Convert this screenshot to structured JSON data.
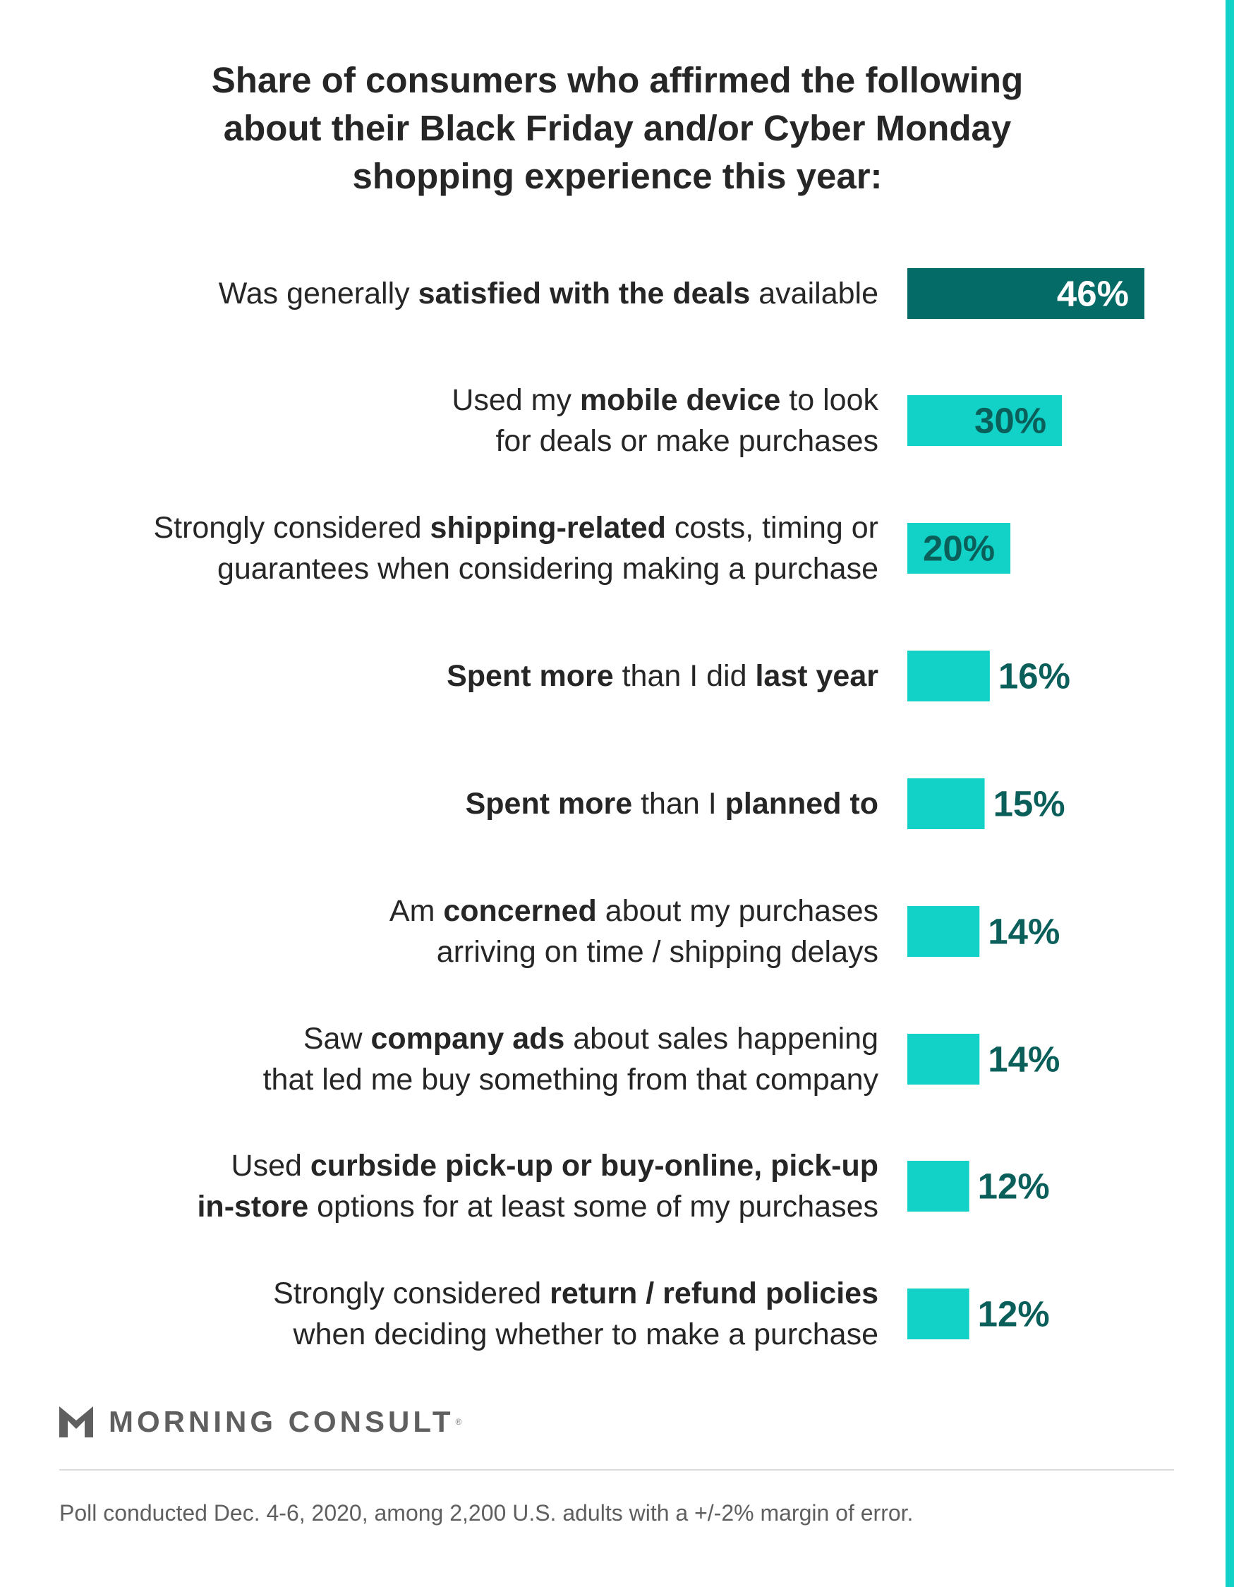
{
  "title_lines": [
    "Share of consumers who affirmed the following",
    "about their Black Friday and/or Cyber Monday",
    "shopping experience this year:"
  ],
  "colors": {
    "highlight_bar": "#056b66",
    "bar": "#12d1c6",
    "value_inside_highlight": "#ffffff",
    "value_text": "#0b5f5a",
    "accent_rule": "#12d1c6"
  },
  "chart_data": {
    "type": "bar",
    "orientation": "horizontal",
    "xlim": [
      0,
      46
    ],
    "grid": false,
    "legend": "none",
    "categories": [
      "Was generally satisfied with the deals available",
      "Used my mobile device to look for deals or make purchases",
      "Strongly considered shipping-related costs, timing or guarantees when considering making a purchase",
      "Spent more than I did last year",
      "Spent more than I planned to",
      "Am concerned about my purchases arriving on time / shipping delays",
      "Saw company ads about sales happening that led me buy something from that company",
      "Used curbside pick-up or buy-online, pick-up in-store options for at least some of my purchases",
      "Strongly considered return / refund policies when deciding whether to make a purchase"
    ],
    "values": [
      46,
      30,
      20,
      16,
      15,
      14,
      14,
      12,
      12
    ],
    "value_labels": [
      "46%",
      "30%",
      "20%",
      "16%",
      "15%",
      "14%",
      "14%",
      "12%",
      "12%"
    ],
    "highlight_index": 0,
    "category_display": [
      [
        [
          {
            "t": "Was generally ",
            "b": false
          },
          {
            "t": "satisfied with the deals",
            "b": true
          },
          {
            "t": " available",
            "b": false
          }
        ]
      ],
      [
        [
          {
            "t": "Used my ",
            "b": false
          },
          {
            "t": "mobile device",
            "b": true
          },
          {
            "t": " to look",
            "b": false
          }
        ],
        [
          {
            "t": "for deals or make purchases",
            "b": false
          }
        ]
      ],
      [
        [
          {
            "t": "Strongly considered ",
            "b": false
          },
          {
            "t": "shipping-related",
            "b": true
          },
          {
            "t": " costs, timing or",
            "b": false
          }
        ],
        [
          {
            "t": "guarantees when considering making a purchase",
            "b": false
          }
        ]
      ],
      [
        [
          {
            "t": "Spent more",
            "b": true
          },
          {
            "t": " than I did ",
            "b": false
          },
          {
            "t": "last year",
            "b": true
          }
        ]
      ],
      [
        [
          {
            "t": "Spent more",
            "b": true
          },
          {
            "t": " than I ",
            "b": false
          },
          {
            "t": "planned to",
            "b": true
          }
        ]
      ],
      [
        [
          {
            "t": "Am ",
            "b": false
          },
          {
            "t": "concerned",
            "b": true
          },
          {
            "t": " about my purchases",
            "b": false
          }
        ],
        [
          {
            "t": "arriving on time / shipping delays",
            "b": false
          }
        ]
      ],
      [
        [
          {
            "t": "Saw ",
            "b": false
          },
          {
            "t": "company ads",
            "b": true
          },
          {
            "t": " about sales happening",
            "b": false
          }
        ],
        [
          {
            "t": "that led me buy something from that company",
            "b": false
          }
        ]
      ],
      [
        [
          {
            "t": "Used ",
            "b": false
          },
          {
            "t": "curbside pick-up or buy-online, pick-up",
            "b": true
          }
        ],
        [
          {
            "t": "in-store",
            "b": true
          },
          {
            "t": " options for at least some of my purchases",
            "b": false
          }
        ]
      ],
      [
        [
          {
            "t": "Strongly considered ",
            "b": false
          },
          {
            "t": "return / refund policies",
            "b": true
          }
        ],
        [
          {
            "t": "when deciding whether to make a purchase",
            "b": false
          }
        ]
      ]
    ]
  },
  "branding": {
    "logo_text": "MORNING CONSULT",
    "logo_icon": "morning-consult-chevron-icon",
    "registered_mark": "®"
  },
  "footnote": "Poll conducted Dec. 4-6, 2020, among 2,200 U.S. adults with a +/-2% margin of error."
}
